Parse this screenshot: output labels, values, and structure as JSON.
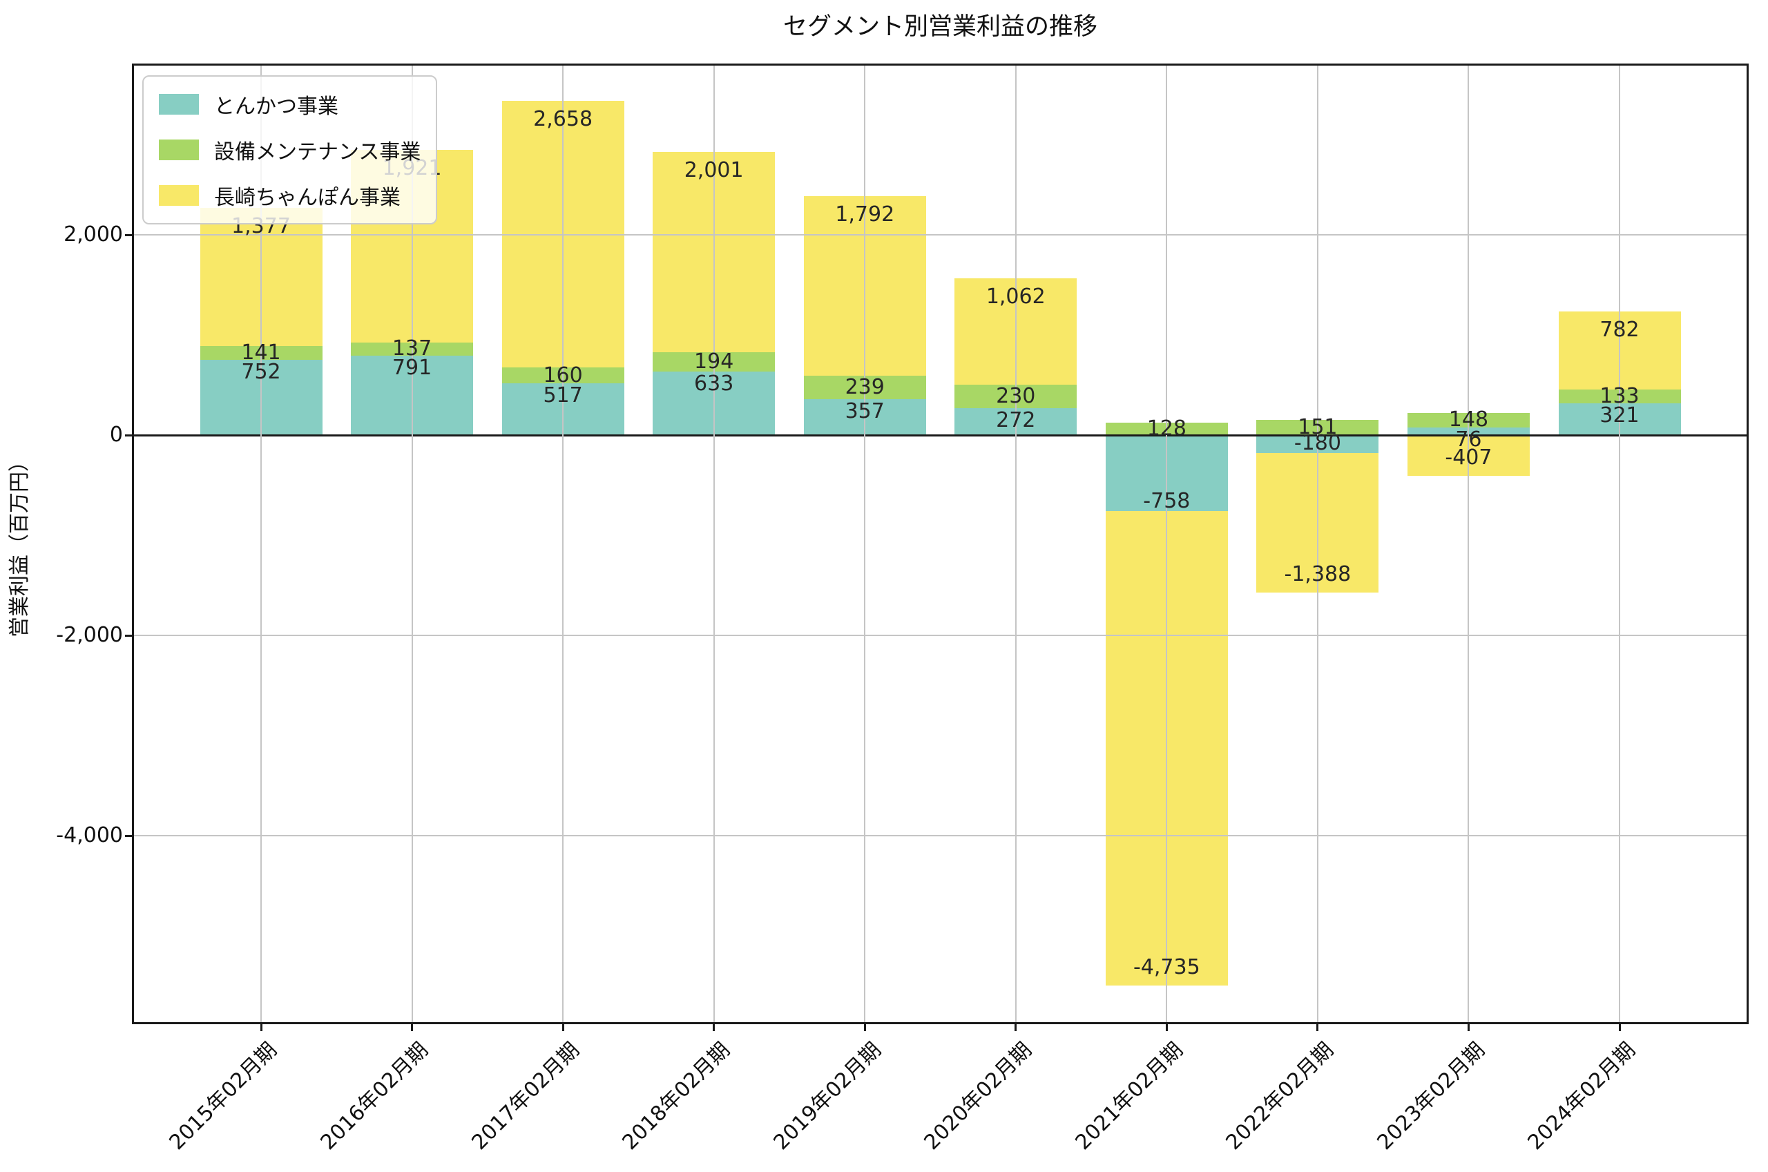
{
  "title": "セグメント別営業利益の推移",
  "chart_data": {
    "type": "bar",
    "stacked": true,
    "title": "セグメント別営業利益の推移",
    "xlabel": "",
    "ylabel": "営業利益（百万円）",
    "categories": [
      "2015年02月期",
      "2016年02月期",
      "2017年02月期",
      "2018年02月期",
      "2019年02月期",
      "2020年02月期",
      "2021年02月期",
      "2022年02月期",
      "2023年02月期",
      "2024年02月期"
    ],
    "series": [
      {
        "name": "とんかつ事業",
        "color": "#87CEC3",
        "values": [
          752,
          791,
          517,
          633,
          357,
          272,
          -758,
          -180,
          76,
          321
        ],
        "labels": [
          "752",
          "791",
          "517",
          "633",
          "357",
          "272",
          "-758",
          "-180",
          "76",
          "321"
        ]
      },
      {
        "name": "設備メンテナンス事業",
        "color": "#A8D765",
        "values": [
          141,
          137,
          160,
          194,
          239,
          230,
          128,
          151,
          148,
          133
        ],
        "labels": [
          "141",
          "137",
          "160",
          "194",
          "239",
          "230",
          "128",
          "151",
          "148",
          "133"
        ]
      },
      {
        "name": "長崎ちゃんぽん事業",
        "color": "#F8E868",
        "values": [
          1377,
          1921,
          2658,
          2001,
          1792,
          1062,
          -4735,
          -1388,
          -407,
          782
        ],
        "labels": [
          "1,377",
          "1,921",
          "2,658",
          "2,001",
          "1,792",
          "1,062",
          "-4,735",
          "-1,388",
          "-407",
          "782"
        ]
      }
    ],
    "yticks": [
      {
        "value": 2000,
        "label": "2,000"
      },
      {
        "value": 0,
        "label": "0"
      },
      {
        "value": -2000,
        "label": "-2,000"
      },
      {
        "value": -4000,
        "label": "-4,000"
      }
    ],
    "ylim": [
      -5860,
      3690
    ],
    "grid": true,
    "legend_position": "upper-left",
    "colors": {
      "grid": "#c5c5c5",
      "axis": "#1a1a1a",
      "bar_label_text": "#262626"
    }
  }
}
